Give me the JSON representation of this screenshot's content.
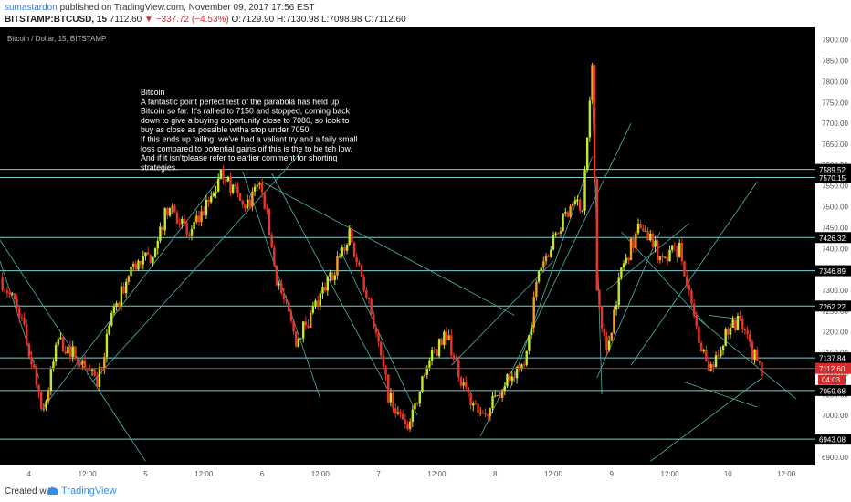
{
  "header": {
    "author": "sumastardon",
    "published": "published on TradingView.com, November 09, 2017 17:56 EST",
    "symbol": "BITSTAMP:BTCUSD, 15",
    "last": "7112.60",
    "change": "▼ −337.72 (−4.53%)",
    "ohlc_o": "O:7129.90",
    "ohlc_h": "H:7130.98",
    "ohlc_l": "L:7098.98",
    "ohlc_c": "C:7112.60"
  },
  "chart_title": "Bitcoin / Dollar, 15, BITSTAMP",
  "annotation": [
    "Bitcoin",
    "A fantastic point perfect test of the parabola has held up",
    "Bitcoin so far. It's rallied to 7150 and stopped, coming back",
    "down to give a buying opportunity close to 7080, so look to",
    "buy as close as possible witha stop under 7050.",
    "If this ends up failing, we've had a valiant try and a faily small",
    "loss compared to potential gains oif this is the to be teh low.",
    "And if it isn'tplease refer to earlier comment for shorting",
    "strategies."
  ],
  "footer": {
    "created": "Created with",
    "brand": "TradingView"
  },
  "colors": {
    "background": "#000000",
    "up": "#c8e62a",
    "down": "#e8362c",
    "accent_up": "#f5a020",
    "level": "#7ccfcf",
    "trend": "#4fb3a6",
    "price": "#d62b2b"
  },
  "chart_data": {
    "type": "candlestick",
    "ylim": [
      6880,
      7930
    ],
    "y_ticks": [
      6900,
      6950,
      7000,
      7050,
      7100,
      7150,
      7200,
      7250,
      7300,
      7350,
      7400,
      7450,
      7500,
      7550,
      7600,
      7650,
      7700,
      7750,
      7800,
      7850,
      7900
    ],
    "x_tick_labels": [
      "4",
      "12:00",
      "5",
      "12:00",
      "6",
      "12:00",
      "7",
      "12:00",
      "8",
      "12:00",
      "9",
      "12:00",
      "10",
      "12:00"
    ],
    "x_tick_pos": [
      0,
      12,
      24,
      36,
      48,
      60,
      72,
      84,
      96,
      108,
      120,
      132,
      144,
      156
    ],
    "x_range": [
      -6,
      162
    ],
    "price_levels": [
      "7589.52",
      "7570.15",
      "7426.32",
      "7346.89",
      "7262.22",
      "7137.84",
      "7059.68",
      "6943.08"
    ],
    "current_price": "7112.60",
    "countdown": "04:03",
    "path": [
      [
        -6,
        7330
      ],
      [
        -2,
        7250
      ],
      [
        3,
        7010
      ],
      [
        6,
        7180
      ],
      [
        10,
        7140
      ],
      [
        14,
        7080
      ],
      [
        17,
        7230
      ],
      [
        21,
        7350
      ],
      [
        25,
        7380
      ],
      [
        29,
        7510
      ],
      [
        33,
        7430
      ],
      [
        37,
        7510
      ],
      [
        40,
        7585
      ],
      [
        44,
        7500
      ],
      [
        48,
        7550
      ],
      [
        51,
        7330
      ],
      [
        55,
        7180
      ],
      [
        58,
        7240
      ],
      [
        62,
        7330
      ],
      [
        66,
        7430
      ],
      [
        70,
        7280
      ],
      [
        74,
        7050
      ],
      [
        78,
        6960
      ],
      [
        82,
        7120
      ],
      [
        86,
        7200
      ],
      [
        90,
        7050
      ],
      [
        94,
        7000
      ],
      [
        98,
        7080
      ],
      [
        102,
        7110
      ],
      [
        105,
        7350
      ],
      [
        109,
        7440
      ],
      [
        112,
        7520
      ],
      [
        114,
        7500
      ],
      [
        116,
        7830
      ],
      [
        117,
        7300
      ],
      [
        119,
        7150
      ],
      [
        122,
        7350
      ],
      [
        126,
        7460
      ],
      [
        130,
        7380
      ],
      [
        134,
        7400
      ],
      [
        137,
        7230
      ],
      [
        140,
        7100
      ],
      [
        143,
        7180
      ],
      [
        146,
        7230
      ],
      [
        149,
        7150
      ],
      [
        151,
        7110
      ]
    ]
  }
}
